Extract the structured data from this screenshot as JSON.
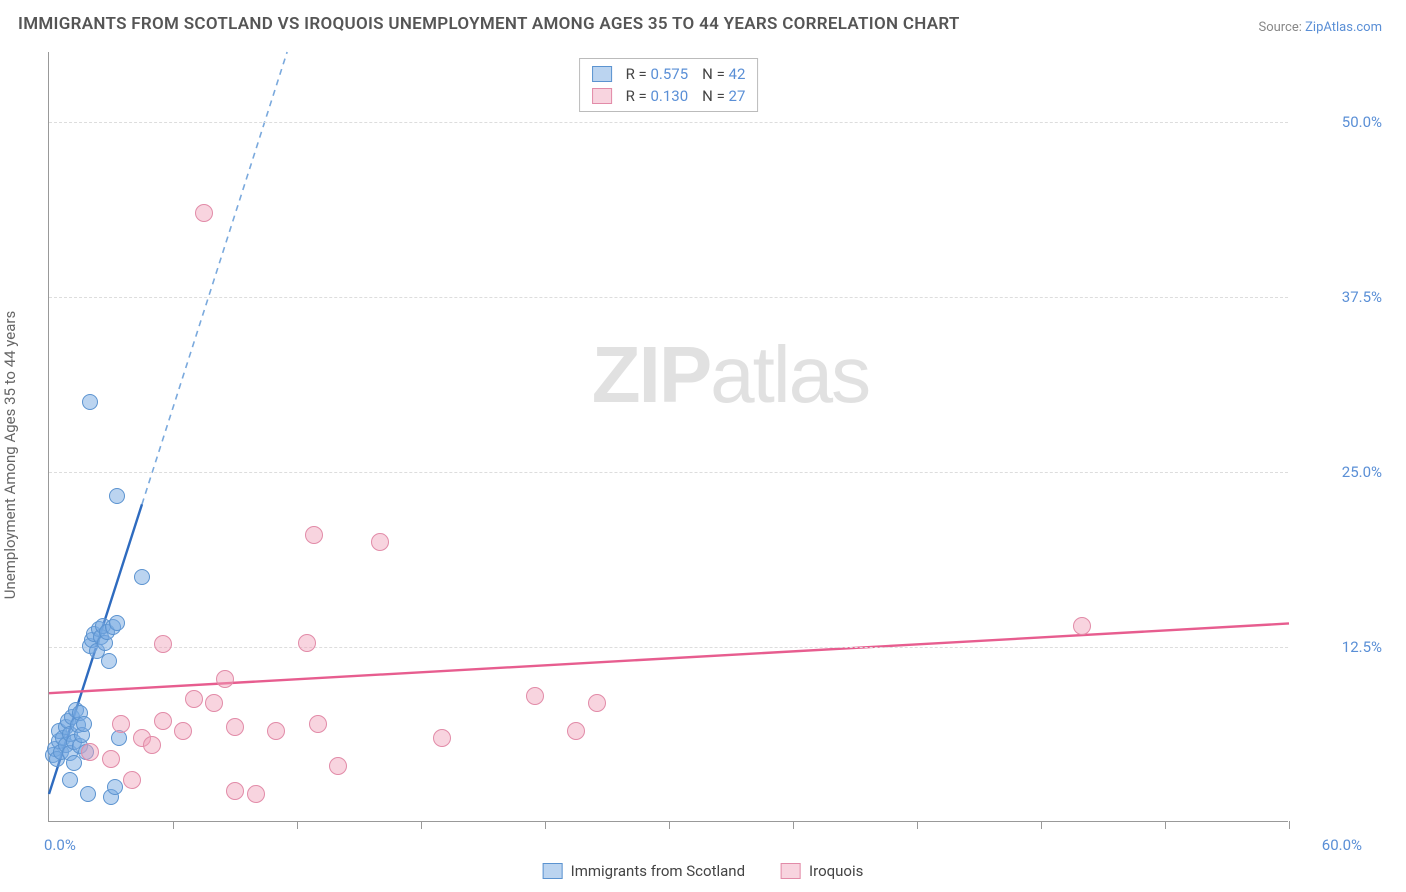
{
  "title": "IMMIGRANTS FROM SCOTLAND VS IROQUOIS UNEMPLOYMENT AMONG AGES 35 TO 44 YEARS CORRELATION CHART",
  "source_prefix": "Source: ",
  "source_name": "ZipAtlas.com",
  "y_axis_label": "Unemployment Among Ages 35 to 44 years",
  "watermark_bold": "ZIP",
  "watermark_rest": "atlas",
  "chart": {
    "type": "scatter",
    "xlim": [
      0,
      60
    ],
    "ylim": [
      0,
      55
    ],
    "x_origin_label": "0.0%",
    "x_max_label": "60.0%",
    "y_ticks": [
      {
        "v": 12.5,
        "label": "12.5%"
      },
      {
        "v": 25.0,
        "label": "25.0%"
      },
      {
        "v": 37.5,
        "label": "37.5%"
      },
      {
        "v": 50.0,
        "label": "50.0%"
      }
    ],
    "x_tick_positions": [
      6,
      12,
      18,
      24,
      30,
      36,
      42,
      48,
      54,
      60
    ],
    "background_color": "#ffffff",
    "grid_color": "#dddddd",
    "series": [
      {
        "id": "scotland",
        "label": "Immigrants from Scotland",
        "color_fill": "rgba(120,170,225,0.5)",
        "color_stroke": "#5b93d0",
        "r_label": "R = ",
        "r_value": "0.575",
        "n_label": "N = ",
        "n_value": "42",
        "trend": {
          "slope": 4.6,
          "intercept": 2.0,
          "solid_xmax": 4.5,
          "color_solid": "#2e6bbf",
          "color_dash": "#7aa9dd",
          "width": 2.4
        },
        "points": [
          {
            "x": 0.2,
            "y": 4.8
          },
          {
            "x": 0.3,
            "y": 5.2
          },
          {
            "x": 0.4,
            "y": 4.5
          },
          {
            "x": 0.5,
            "y": 5.8
          },
          {
            "x": 0.5,
            "y": 6.5
          },
          {
            "x": 0.6,
            "y": 5.0
          },
          {
            "x": 0.7,
            "y": 6.0
          },
          {
            "x": 0.8,
            "y": 6.8
          },
          {
            "x": 0.8,
            "y": 5.5
          },
          {
            "x": 0.9,
            "y": 7.2
          },
          {
            "x": 1.0,
            "y": 6.3
          },
          {
            "x": 1.0,
            "y": 4.9
          },
          {
            "x": 1.1,
            "y": 7.5
          },
          {
            "x": 1.2,
            "y": 5.7
          },
          {
            "x": 1.3,
            "y": 8.0
          },
          {
            "x": 1.4,
            "y": 6.9
          },
          {
            "x": 1.5,
            "y": 5.4
          },
          {
            "x": 1.5,
            "y": 7.8
          },
          {
            "x": 1.6,
            "y": 6.2
          },
          {
            "x": 1.7,
            "y": 7.0
          },
          {
            "x": 1.8,
            "y": 5.0
          },
          {
            "x": 1.9,
            "y": 2.0
          },
          {
            "x": 2.0,
            "y": 12.6
          },
          {
            "x": 2.1,
            "y": 13.0
          },
          {
            "x": 2.2,
            "y": 13.4
          },
          {
            "x": 2.3,
            "y": 12.2
          },
          {
            "x": 2.4,
            "y": 13.8
          },
          {
            "x": 2.5,
            "y": 13.2
          },
          {
            "x": 2.6,
            "y": 14.0
          },
          {
            "x": 2.7,
            "y": 12.8
          },
          {
            "x": 2.8,
            "y": 13.6
          },
          {
            "x": 2.9,
            "y": 11.5
          },
          {
            "x": 3.0,
            "y": 1.8
          },
          {
            "x": 3.1,
            "y": 13.9
          },
          {
            "x": 3.2,
            "y": 2.5
          },
          {
            "x": 3.3,
            "y": 14.2
          },
          {
            "x": 3.4,
            "y": 6.0
          },
          {
            "x": 2.0,
            "y": 30.0
          },
          {
            "x": 3.3,
            "y": 23.3
          },
          {
            "x": 4.5,
            "y": 17.5
          },
          {
            "x": 1.0,
            "y": 3.0
          },
          {
            "x": 1.2,
            "y": 4.2
          }
        ]
      },
      {
        "id": "iroquois",
        "label": "Iroquois",
        "color_fill": "rgba(240,160,185,0.45)",
        "color_stroke": "#e28ba8",
        "r_label": "R = ",
        "r_value": "0.130",
        "n_label": "N = ",
        "n_value": "27",
        "trend": {
          "slope": 0.083,
          "intercept": 9.2,
          "solid_xmax": 60,
          "color_solid": "#e75d8f",
          "color_dash": "#e75d8f",
          "width": 2.4
        },
        "points": [
          {
            "x": 2.0,
            "y": 5.0
          },
          {
            "x": 3.0,
            "y": 4.5
          },
          {
            "x": 3.5,
            "y": 7.0
          },
          {
            "x": 4.0,
            "y": 3.0
          },
          {
            "x": 4.5,
            "y": 6.0
          },
          {
            "x": 5.5,
            "y": 7.2
          },
          {
            "x": 5.5,
            "y": 12.7
          },
          {
            "x": 6.5,
            "y": 6.5
          },
          {
            "x": 7.0,
            "y": 8.8
          },
          {
            "x": 7.5,
            "y": 43.5
          },
          {
            "x": 8.0,
            "y": 8.5
          },
          {
            "x": 8.5,
            "y": 10.2
          },
          {
            "x": 9.0,
            "y": 6.8
          },
          {
            "x": 9.0,
            "y": 2.2
          },
          {
            "x": 10.0,
            "y": 2.0
          },
          {
            "x": 11.0,
            "y": 6.5
          },
          {
            "x": 12.5,
            "y": 12.8
          },
          {
            "x": 12.8,
            "y": 20.5
          },
          {
            "x": 13.0,
            "y": 7.0
          },
          {
            "x": 14.0,
            "y": 4.0
          },
          {
            "x": 16.0,
            "y": 20.0
          },
          {
            "x": 19.0,
            "y": 6.0
          },
          {
            "x": 23.5,
            "y": 9.0
          },
          {
            "x": 25.5,
            "y": 6.5
          },
          {
            "x": 26.5,
            "y": 8.5
          },
          {
            "x": 50.0,
            "y": 14.0
          },
          {
            "x": 5.0,
            "y": 5.5
          }
        ]
      }
    ]
  },
  "legend_bottom": [
    {
      "swatch": "blue",
      "label": "Immigrants from Scotland"
    },
    {
      "swatch": "pink",
      "label": "Iroquois"
    }
  ]
}
